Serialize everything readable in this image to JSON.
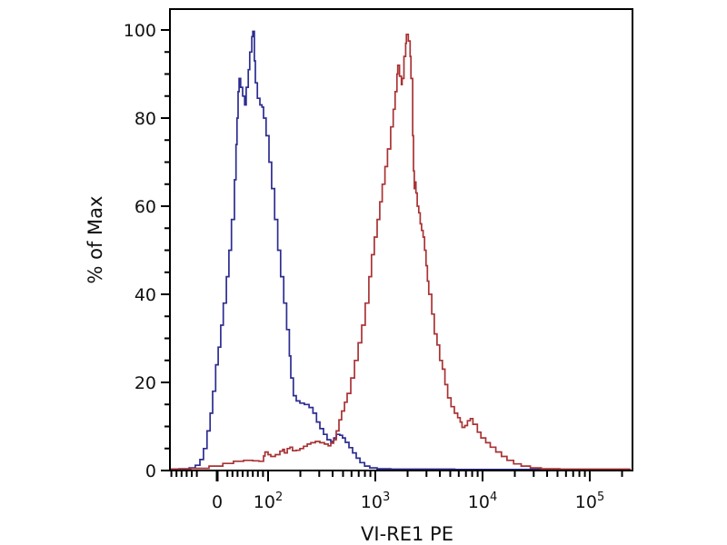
{
  "figure": {
    "background": "#ffffff",
    "frame_color": "#000000",
    "tick_color": "#000000",
    "label_color": "#111111"
  },
  "chart_data": {
    "type": "line",
    "subtype": "flow-cytometry-histogram-overlay",
    "title": "",
    "xlabel": "VI-RE1 PE",
    "ylabel": "% of Max",
    "legend": "none",
    "grid": false,
    "x_axis": {
      "scale": "biexponential",
      "range": [
        -93,
        245000
      ],
      "major_ticks": [
        {
          "value": 0,
          "label": "0"
        },
        {
          "value": 100,
          "label": "10^2"
        },
        {
          "value": 1000,
          "label": "10^3"
        },
        {
          "value": 10000,
          "label": "10^4"
        },
        {
          "value": 100000,
          "label": "10^5"
        }
      ],
      "minor_ticks": [
        -90,
        -80,
        -70,
        -60,
        -50,
        -40,
        20,
        30,
        40,
        50,
        60,
        70,
        80,
        90,
        200,
        300,
        400,
        500,
        600,
        700,
        800,
        900,
        2000,
        3000,
        4000,
        5000,
        6000,
        7000,
        8000,
        9000,
        20000,
        30000,
        40000,
        50000,
        60000,
        70000,
        80000,
        90000,
        200000
      ]
    },
    "y_axis": {
      "range": [
        0,
        104.5
      ],
      "major_ticks": [
        0,
        20,
        40,
        60,
        80,
        100
      ],
      "minor_step": 5
    },
    "series": [
      {
        "name": "blue",
        "color": "#2c2c92",
        "peak": {
          "x": 70,
          "y": 99.7
        },
        "points": [
          [
            -93,
            0.3
          ],
          [
            -75,
            0.4
          ],
          [
            -55,
            0.6
          ],
          [
            -43,
            1.2
          ],
          [
            -34,
            2.5
          ],
          [
            -27,
            5
          ],
          [
            -20,
            9
          ],
          [
            -14,
            13
          ],
          [
            -9,
            18
          ],
          [
            -3,
            24
          ],
          [
            2,
            28
          ],
          [
            7,
            33
          ],
          [
            12,
            38
          ],
          [
            18,
            44
          ],
          [
            23,
            50
          ],
          [
            28,
            57
          ],
          [
            34,
            66
          ],
          [
            37,
            74
          ],
          [
            39,
            80
          ],
          [
            41,
            86
          ],
          [
            43,
            89
          ],
          [
            46,
            87
          ],
          [
            50,
            85
          ],
          [
            54,
            83
          ],
          [
            57,
            87
          ],
          [
            61,
            91
          ],
          [
            64,
            95
          ],
          [
            68,
            98.5
          ],
          [
            70,
            99.7
          ],
          [
            73,
            93
          ],
          [
            75,
            88
          ],
          [
            79,
            84.5
          ],
          [
            84,
            83
          ],
          [
            88,
            82.5
          ],
          [
            91,
            80
          ],
          [
            96,
            76
          ],
          [
            102,
            70
          ],
          [
            108,
            64
          ],
          [
            115,
            57
          ],
          [
            123,
            50
          ],
          [
            131,
            44
          ],
          [
            140,
            38
          ],
          [
            149,
            32
          ],
          [
            158,
            26
          ],
          [
            163,
            21
          ],
          [
            172,
            17
          ],
          [
            183,
            15.8
          ],
          [
            198,
            15.3
          ],
          [
            218,
            15
          ],
          [
            241,
            14.3
          ],
          [
            262,
            13
          ],
          [
            283,
            11
          ],
          [
            304,
            9.5
          ],
          [
            329,
            8.2
          ],
          [
            355,
            7
          ],
          [
            384,
            6.6
          ],
          [
            410,
            7.4
          ],
          [
            434,
            8.2
          ],
          [
            466,
            8
          ],
          [
            494,
            7.4
          ],
          [
            525,
            6.4
          ],
          [
            568,
            5.2
          ],
          [
            614,
            4
          ],
          [
            664,
            2.8
          ],
          [
            719,
            1.8
          ],
          [
            794,
            1
          ],
          [
            888,
            0.6
          ],
          [
            1040,
            0.4
          ],
          [
            1390,
            0.3
          ],
          [
            5500,
            0.25
          ],
          [
            17000,
            0.25
          ],
          [
            48000,
            0.2
          ]
        ]
      },
      {
        "name": "red",
        "color": "#a93234",
        "peak": {
          "x": 1950,
          "y": 99
        },
        "points": [
          [
            -93,
            0.3
          ],
          [
            -52,
            0.5
          ],
          [
            -16,
            1
          ],
          [
            11,
            1.6
          ],
          [
            32,
            2.1
          ],
          [
            52,
            2.3
          ],
          [
            70,
            2.2
          ],
          [
            82,
            2.1
          ],
          [
            91,
            3.3
          ],
          [
            94,
            4.2
          ],
          [
            100,
            3.6
          ],
          [
            106,
            3.2
          ],
          [
            117,
            3.6
          ],
          [
            129,
            4.4
          ],
          [
            137,
            4.8
          ],
          [
            142,
            4
          ],
          [
            151,
            5
          ],
          [
            160,
            5.3
          ],
          [
            169,
            4.5
          ],
          [
            183,
            4.6
          ],
          [
            198,
            5
          ],
          [
            214,
            5.5
          ],
          [
            232,
            6
          ],
          [
            250,
            6.3
          ],
          [
            276,
            6.6
          ],
          [
            304,
            6.3
          ],
          [
            335,
            6
          ],
          [
            363,
            5.6
          ],
          [
            384,
            6.2
          ],
          [
            408,
            7
          ],
          [
            432,
            9
          ],
          [
            458,
            11.5
          ],
          [
            485,
            13.5
          ],
          [
            516,
            15.5
          ],
          [
            546,
            17.5
          ],
          [
            591,
            21
          ],
          [
            640,
            25
          ],
          [
            691,
            29
          ],
          [
            746,
            33
          ],
          [
            806,
            38
          ],
          [
            871,
            44
          ],
          [
            922,
            49
          ],
          [
            978,
            53
          ],
          [
            1040,
            57
          ],
          [
            1100,
            61
          ],
          [
            1160,
            65
          ],
          [
            1230,
            69
          ],
          [
            1300,
            73
          ],
          [
            1390,
            78
          ],
          [
            1470,
            82
          ],
          [
            1530,
            86
          ],
          [
            1590,
            90
          ],
          [
            1620,
            92
          ],
          [
            1680,
            89.5
          ],
          [
            1750,
            87.6
          ],
          [
            1780,
            89
          ],
          [
            1850,
            94
          ],
          [
            1920,
            97
          ],
          [
            1950,
            99
          ],
          [
            2030,
            97.5
          ],
          [
            2110,
            94
          ],
          [
            2150,
            89
          ],
          [
            2230,
            76
          ],
          [
            2270,
            68
          ],
          [
            2310,
            64
          ],
          [
            2350,
            65.5
          ],
          [
            2390,
            63
          ],
          [
            2460,
            60
          ],
          [
            2540,
            58.5
          ],
          [
            2620,
            56
          ],
          [
            2700,
            54.5
          ],
          [
            2790,
            53
          ],
          [
            2880,
            50
          ],
          [
            2970,
            46.5
          ],
          [
            3060,
            43
          ],
          [
            3150,
            40
          ],
          [
            3360,
            35.5
          ],
          [
            3550,
            31
          ],
          [
            3760,
            28.5
          ],
          [
            3980,
            25
          ],
          [
            4220,
            23
          ],
          [
            4460,
            19.5
          ],
          [
            4730,
            16.5
          ],
          [
            5080,
            14.5
          ],
          [
            5460,
            13
          ],
          [
            5860,
            12
          ],
          [
            6190,
            11
          ],
          [
            6440,
            9.8
          ],
          [
            6830,
            10.2
          ],
          [
            7230,
            11.3
          ],
          [
            7680,
            11.8
          ],
          [
            8130,
            10.5
          ],
          [
            8950,
            8.7
          ],
          [
            9650,
            7.4
          ],
          [
            10700,
            6.3
          ],
          [
            11800,
            5.3
          ],
          [
            13300,
            4.2
          ],
          [
            15000,
            3.2
          ],
          [
            16900,
            2.3
          ],
          [
            19500,
            1.5
          ],
          [
            22900,
            1
          ],
          [
            27900,
            0.6
          ],
          [
            35300,
            0.4
          ],
          [
            52500,
            0.3
          ],
          [
            95000,
            0.3
          ],
          [
            240000,
            0.3
          ]
        ]
      }
    ]
  }
}
